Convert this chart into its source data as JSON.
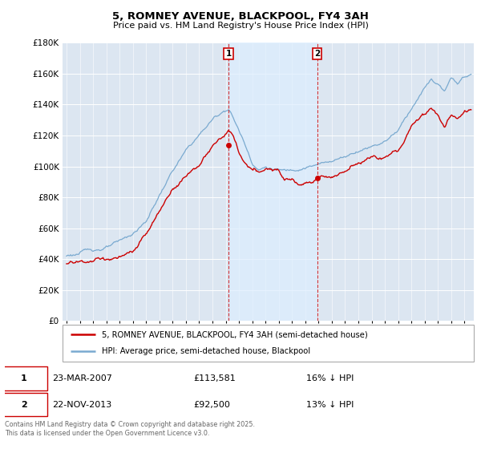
{
  "title": "5, ROMNEY AVENUE, BLACKPOOL, FY4 3AH",
  "subtitle": "Price paid vs. HM Land Registry's House Price Index (HPI)",
  "ylim": [
    0,
    180000
  ],
  "yticks": [
    0,
    20000,
    40000,
    60000,
    80000,
    100000,
    120000,
    140000,
    160000,
    180000
  ],
  "legend_line1": "5, ROMNEY AVENUE, BLACKPOOL, FY4 3AH (semi-detached house)",
  "legend_line2": "HPI: Average price, semi-detached house, Blackpool",
  "marker1_date": "23-MAR-2007",
  "marker1_price": "£113,581",
  "marker1_hpi": "16% ↓ HPI",
  "marker2_date": "22-NOV-2013",
  "marker2_price": "£92,500",
  "marker2_hpi": "13% ↓ HPI",
  "copyright": "Contains HM Land Registry data © Crown copyright and database right 2025.\nThis data is licensed under the Open Government Licence v3.0.",
  "red_color": "#cc0000",
  "blue_color": "#7aaad0",
  "shade_color": "#ddeeff",
  "plot_bg_color": "#dce6f1",
  "vline1_x": 2007.22,
  "vline2_x": 2013.9,
  "property_sale1_x": 2007.22,
  "property_sale1_y": 113581,
  "property_sale2_x": 2013.9,
  "property_sale2_y": 92500,
  "xlim_left": 1994.7,
  "xlim_right": 2025.7
}
